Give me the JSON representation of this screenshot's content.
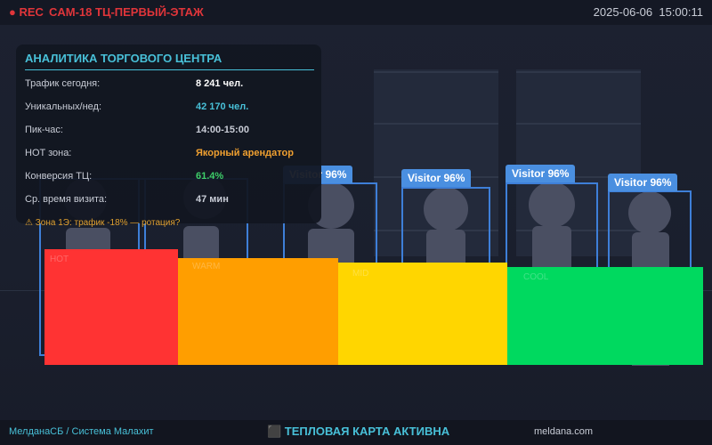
{
  "header": {
    "rec_label": "● REC",
    "camera_title": "CAM-18 ТЦ-ПЕРВЫЙ-ЭТАЖ",
    "date": "2025-06-06",
    "time": "15:00:11",
    "rec_color": "#e0353a"
  },
  "detections": [
    {
      "label": "Visitor 96%"
    },
    {
      "label": "Visitor 96%"
    },
    {
      "label": "Visitor 96%"
    },
    {
      "label": "Visitor 96%"
    },
    {
      "label": "Visitor 96%"
    }
  ],
  "heatmap": {
    "zones": [
      {
        "label": "HOT",
        "color": "#ff3333"
      },
      {
        "label": "WARM",
        "color": "#ff9e00"
      },
      {
        "label": "MID",
        "color": "#ffd600"
      },
      {
        "label": "COOL",
        "color": "#00d95f"
      }
    ]
  },
  "panel": {
    "title": "АНАЛИТИКА ТОРГОВОГО ЦЕНТРА",
    "rows": [
      {
        "label": "Трафик сегодня:",
        "value": "8 241 чел.",
        "color": "#ffffff"
      },
      {
        "label": "Уникальных/нед:",
        "value": "42 170 чел.",
        "color": "#48c0d8"
      },
      {
        "label": "Пик-час:",
        "value": "14:00-15:00",
        "color": "#c8ccd6"
      },
      {
        "label": "HOT зона:",
        "value": "Якорный арендатор",
        "color": "#f0a030"
      },
      {
        "label": "Конверсия ТЦ:",
        "value": "61.4%",
        "color": "#3ecf6a"
      },
      {
        "label": "Ср. время визита:",
        "value": "47 мин",
        "color": "#c8ccd6"
      }
    ],
    "accent_color": "#48c0d8"
  },
  "alert": {
    "icon": "warning-icon",
    "text": "⚠ Зона 1Э: трафик -18% — ротация?"
  },
  "footer": {
    "brand": "МелданаСБ / Система Малахит",
    "status": "⬛ ТЕПЛОВАЯ КАРТА АКТИВНА",
    "site": "meldana.com"
  }
}
